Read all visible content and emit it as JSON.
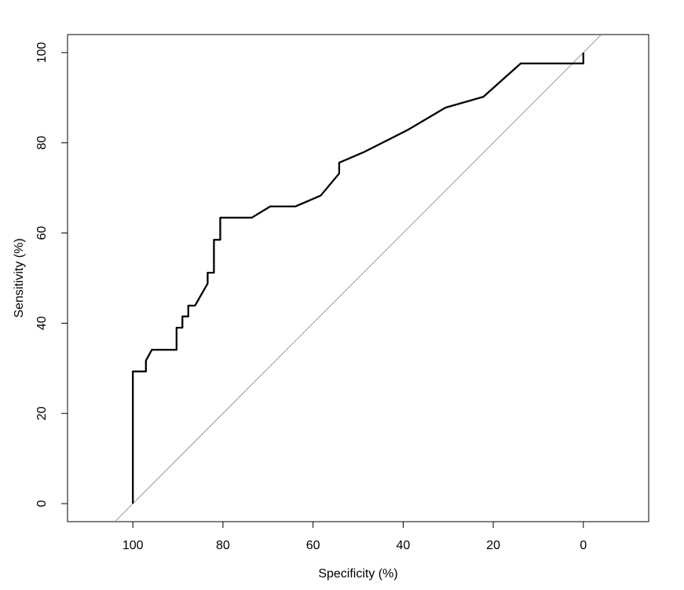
{
  "chart_data": {
    "type": "line",
    "title": "",
    "xlabel": "Specificity (%)",
    "ylabel": "Sensitivity (%)",
    "xlim": [
      114.5,
      -14.5
    ],
    "ylim": [
      -4,
      104
    ],
    "x_reversed": true,
    "grid": false,
    "x_ticks": [
      100,
      80,
      60,
      40,
      20,
      0
    ],
    "y_ticks": [
      0,
      20,
      40,
      60,
      80,
      100
    ],
    "x_tick_labels": [
      "100",
      "80",
      "60",
      "40",
      "20",
      "0"
    ],
    "y_tick_labels": [
      "0",
      "20",
      "40",
      "60",
      "80",
      "100"
    ],
    "series": [
      {
        "color": "#000000",
        "x": [
          100,
          100,
          97.1,
          97.1,
          95.8,
          90.3,
          90.3,
          89.0,
          89.0,
          87.7,
          87.7,
          86.2,
          83.4,
          83.4,
          82.0,
          82.0,
          80.6,
          80.6,
          73.6,
          69.5,
          63.9,
          58.3,
          54.2,
          54.2,
          48.6,
          38.9,
          30.6,
          22.2,
          13.9,
          0,
          0
        ],
        "y": [
          0,
          29.3,
          29.3,
          31.7,
          34.1,
          34.1,
          39.0,
          39.0,
          41.5,
          41.5,
          43.9,
          43.9,
          48.8,
          51.2,
          51.2,
          58.5,
          58.5,
          63.4,
          63.4,
          65.9,
          65.9,
          68.3,
          73.2,
          75.6,
          78.0,
          82.9,
          87.8,
          90.2,
          97.6,
          97.6,
          100
        ]
      },
      {
        "color": "#aaaaaa",
        "x": [
          104,
          -4
        ],
        "y": [
          -4,
          104
        ]
      }
    ]
  }
}
